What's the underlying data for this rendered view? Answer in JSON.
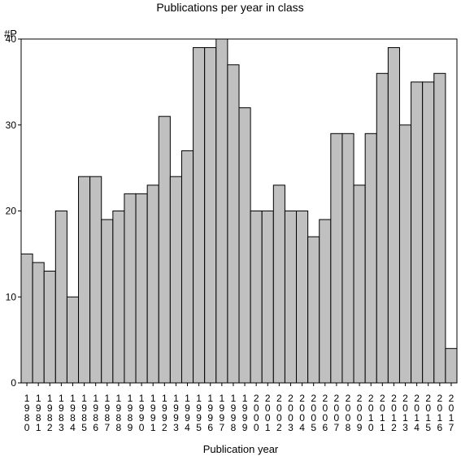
{
  "colors": {
    "bar_fill": "#c0c0c0",
    "bar_stroke": "#000000",
    "axis": "#000000",
    "background": "#ffffff"
  },
  "chart_data": {
    "type": "bar",
    "title": "Publications per year in class",
    "ylabel": "#P",
    "xlabel": "Publication year",
    "ylim": [
      0,
      40
    ],
    "yticks": [
      0,
      10,
      20,
      30,
      40
    ],
    "grid": false,
    "legend": "none",
    "categories": [
      "1980",
      "1981",
      "1982",
      "1983",
      "1984",
      "1985",
      "1986",
      "1987",
      "1988",
      "1989",
      "1990",
      "1991",
      "1992",
      "1993",
      "1994",
      "1995",
      "1996",
      "1997",
      "1998",
      "1999",
      "2000",
      "2001",
      "2002",
      "2003",
      "2004",
      "2005",
      "2006",
      "2007",
      "2008",
      "2009",
      "2010",
      "2011",
      "2012",
      "2013",
      "2014",
      "2015",
      "2016",
      "2017"
    ],
    "values": [
      15,
      14,
      13,
      20,
      10,
      24,
      24,
      19,
      20,
      22,
      22,
      23,
      31,
      24,
      27,
      39,
      39,
      40,
      37,
      32,
      20,
      20,
      23,
      20,
      20,
      17,
      19,
      29,
      29,
      23,
      29,
      36,
      39,
      30,
      35,
      35,
      36,
      4
    ]
  }
}
